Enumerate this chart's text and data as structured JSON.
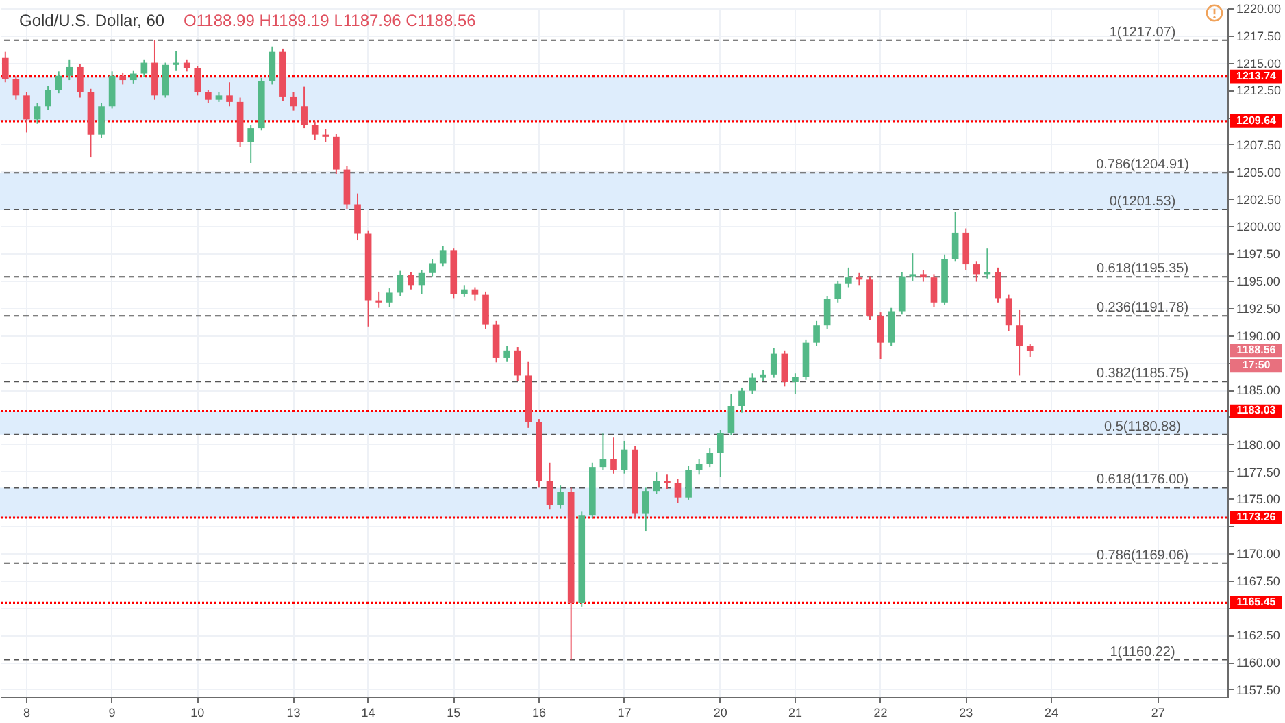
{
  "chart_data": {
    "type": "candlestick",
    "title": "Gold/U.S. Dollar, 60",
    "annotations": [
      "O1188.99 H1189.19 L1187.96 C1188.56",
      "1188.56",
      "17:50"
    ],
    "categories": [
      null,
      null,
      "8",
      null,
      null,
      null,
      null,
      null,
      null,
      null,
      "9",
      null,
      null,
      null,
      null,
      null,
      null,
      null,
      "10",
      null,
      null,
      null,
      null,
      null,
      null,
      null,
      null,
      "13",
      null,
      null,
      null,
      null,
      null,
      null,
      "14",
      null,
      null,
      null,
      null,
      null,
      null,
      null,
      "15",
      null,
      null,
      null,
      null,
      null,
      null,
      null,
      "16",
      null,
      null,
      null,
      null,
      null,
      null,
      null,
      "17",
      null,
      null,
      null,
      null,
      null,
      null,
      null,
      null,
      "20",
      null,
      null,
      null,
      null,
      null,
      null,
      "21",
      null,
      null,
      null,
      null,
      null,
      null,
      null,
      "22",
      null,
      null,
      null,
      null,
      null,
      null,
      null,
      "23",
      null,
      null,
      null,
      null,
      null,
      null,
      null,
      "24",
      null,
      null,
      null,
      null,
      null,
      null,
      null,
      null,
      null,
      "27",
      null,
      null,
      null,
      null,
      null,
      null
    ],
    "ohlc": [
      [
        1215.5,
        1216.0,
        1213.2,
        1213.5
      ],
      [
        1213.5,
        1213.8,
        1211.6,
        1212.0
      ],
      [
        1212.0,
        1212.3,
        1208.6,
        1209.8
      ],
      [
        1209.8,
        1211.3,
        1209.4,
        1211.0
      ],
      [
        1211.0,
        1212.9,
        1210.7,
        1212.5
      ],
      [
        1212.5,
        1214.2,
        1212.2,
        1213.8
      ],
      [
        1213.8,
        1215.3,
        1213.4,
        1214.6
      ],
      [
        1214.6,
        1214.9,
        1211.8,
        1212.3
      ],
      [
        1212.3,
        1212.6,
        1206.3,
        1208.4
      ],
      [
        1208.4,
        1211.3,
        1208.1,
        1211.0
      ],
      [
        1211.0,
        1214.2,
        1210.8,
        1213.8
      ],
      [
        1213.8,
        1214.1,
        1213.0,
        1213.4
      ],
      [
        1213.4,
        1214.3,
        1213.1,
        1214.0
      ],
      [
        1214.0,
        1215.3,
        1213.7,
        1215.0
      ],
      [
        1215.0,
        1217.07,
        1211.6,
        1212.0
      ],
      [
        1212.0,
        1215.0,
        1211.8,
        1214.8
      ],
      [
        1214.8,
        1216.1,
        1214.3,
        1215.0
      ],
      [
        1215.0,
        1215.3,
        1214.2,
        1214.5
      ],
      [
        1214.5,
        1214.7,
        1212.0,
        1212.3
      ],
      [
        1212.3,
        1212.5,
        1211.3,
        1211.6
      ],
      [
        1211.6,
        1212.3,
        1211.4,
        1212.0
      ],
      [
        1212.0,
        1213.2,
        1211.0,
        1211.4
      ],
      [
        1211.4,
        1211.8,
        1207.3,
        1207.7
      ],
      [
        1207.7,
        1209.3,
        1205.8,
        1209.0
      ],
      [
        1209.0,
        1213.6,
        1208.8,
        1213.3
      ],
      [
        1213.3,
        1216.5,
        1213.0,
        1216.0
      ],
      [
        1216.0,
        1216.3,
        1211.5,
        1211.9
      ],
      [
        1211.9,
        1212.3,
        1210.6,
        1211.0
      ],
      [
        1211.0,
        1212.8,
        1209.0,
        1209.3
      ],
      [
        1209.3,
        1209.6,
        1207.9,
        1208.4
      ],
      [
        1208.4,
        1208.9,
        1207.7,
        1208.2
      ],
      [
        1208.2,
        1208.5,
        1204.8,
        1205.2
      ],
      [
        1205.2,
        1205.5,
        1201.6,
        1202.0
      ],
      [
        1202.0,
        1203.0,
        1198.7,
        1199.3
      ],
      [
        1199.3,
        1199.6,
        1190.8,
        1193.2
      ],
      [
        1193.2,
        1194.0,
        1192.5,
        1193.0
      ],
      [
        1193.0,
        1194.3,
        1192.6,
        1193.9
      ],
      [
        1193.9,
        1195.9,
        1193.6,
        1195.5
      ],
      [
        1195.5,
        1195.8,
        1194.2,
        1194.6
      ],
      [
        1194.6,
        1196.0,
        1193.8,
        1195.7
      ],
      [
        1195.7,
        1197.0,
        1195.4,
        1196.6
      ],
      [
        1196.6,
        1198.2,
        1196.3,
        1197.8
      ],
      [
        1197.8,
        1198.0,
        1193.4,
        1193.8
      ],
      [
        1193.8,
        1194.6,
        1193.5,
        1194.2
      ],
      [
        1194.2,
        1194.4,
        1193.2,
        1193.7
      ],
      [
        1193.7,
        1194.0,
        1190.6,
        1191.0
      ],
      [
        1191.0,
        1191.3,
        1187.5,
        1187.9
      ],
      [
        1187.9,
        1189.0,
        1187.6,
        1188.6
      ],
      [
        1188.6,
        1188.9,
        1185.8,
        1186.3
      ],
      [
        1186.3,
        1187.6,
        1181.5,
        1182.0
      ],
      [
        1182.0,
        1182.3,
        1176.0,
        1176.6
      ],
      [
        1176.6,
        1178.3,
        1174.0,
        1174.4
      ],
      [
        1174.4,
        1176.2,
        1174.1,
        1175.6
      ],
      [
        1175.6,
        1176.0,
        1160.22,
        1165.4
      ],
      [
        1165.4,
        1173.8,
        1165.1,
        1173.5
      ],
      [
        1173.5,
        1178.3,
        1173.2,
        1177.9
      ],
      [
        1177.9,
        1181.0,
        1177.6,
        1178.6
      ],
      [
        1178.6,
        1180.6,
        1177.3,
        1177.6
      ],
      [
        1177.6,
        1180.3,
        1177.3,
        1179.5
      ],
      [
        1179.5,
        1179.8,
        1173.2,
        1173.6
      ],
      [
        1173.6,
        1176.0,
        1172.0,
        1175.7
      ],
      [
        1175.7,
        1177.4,
        1175.4,
        1176.6
      ],
      [
        1176.6,
        1177.2,
        1175.9,
        1176.4
      ],
      [
        1176.4,
        1176.8,
        1174.6,
        1175.1
      ],
      [
        1175.1,
        1178.0,
        1174.9,
        1177.6
      ],
      [
        1177.6,
        1178.6,
        1177.2,
        1178.2
      ],
      [
        1178.2,
        1179.6,
        1177.9,
        1179.2
      ],
      [
        1179.2,
        1181.3,
        1177.0,
        1181.0
      ],
      [
        1181.0,
        1184.6,
        1180.8,
        1183.5
      ],
      [
        1183.5,
        1185.2,
        1182.9,
        1184.9
      ],
      [
        1184.9,
        1186.5,
        1184.6,
        1186.1
      ],
      [
        1186.1,
        1186.8,
        1185.8,
        1186.4
      ],
      [
        1186.4,
        1188.8,
        1186.1,
        1188.3
      ],
      [
        1188.3,
        1188.6,
        1185.3,
        1185.7
      ],
      [
        1185.7,
        1186.5,
        1184.6,
        1186.2
      ],
      [
        1186.2,
        1189.6,
        1185.9,
        1189.3
      ],
      [
        1189.3,
        1191.3,
        1189.0,
        1190.9
      ],
      [
        1190.9,
        1193.6,
        1190.6,
        1193.3
      ],
      [
        1193.3,
        1195.0,
        1193.0,
        1194.7
      ],
      [
        1194.7,
        1196.2,
        1194.4,
        1195.3
      ],
      [
        1195.3,
        1195.7,
        1194.6,
        1195.1
      ],
      [
        1195.1,
        1195.4,
        1191.4,
        1191.8
      ],
      [
        1191.8,
        1192.1,
        1187.8,
        1189.3
      ],
      [
        1189.3,
        1192.5,
        1189.0,
        1192.2
      ],
      [
        1192.2,
        1195.8,
        1191.9,
        1195.4
      ],
      [
        1195.4,
        1197.5,
        1195.0,
        1195.6
      ],
      [
        1195.6,
        1196.0,
        1194.9,
        1195.3
      ],
      [
        1195.3,
        1195.6,
        1192.6,
        1193.0
      ],
      [
        1193.0,
        1197.4,
        1192.8,
        1197.0
      ],
      [
        1197.0,
        1201.3,
        1196.8,
        1199.4
      ],
      [
        1199.4,
        1199.8,
        1196.0,
        1196.5
      ],
      [
        1196.5,
        1196.8,
        1194.9,
        1195.6
      ],
      [
        1195.6,
        1198.0,
        1195.2,
        1195.8
      ],
      [
        1195.8,
        1196.2,
        1193.0,
        1193.4
      ],
      [
        1193.4,
        1193.7,
        1190.4,
        1190.9
      ],
      [
        1190.9,
        1192.3,
        1186.3,
        1188.99
      ],
      [
        1188.99,
        1189.19,
        1187.96,
        1188.56
      ],
      null,
      null,
      null,
      null,
      null,
      null,
      null,
      null,
      null,
      null,
      null,
      null,
      null,
      null,
      null,
      null,
      null,
      null
    ],
    "ylim": [
      1156.8,
      1220.0
    ],
    "yticks": [
      {
        "value": 1157.5,
        "label": "1157.50"
      },
      {
        "value": 1160,
        "label": "1160.00"
      },
      {
        "value": 1162.5,
        "label": "1162.50"
      },
      {
        "value": 1165,
        "label": null
      },
      {
        "value": 1167.5,
        "label": "1167.50"
      },
      {
        "value": 1170,
        "label": "1170.00"
      },
      {
        "value": 1172.5,
        "label": null
      },
      {
        "value": 1175,
        "label": "1175.00"
      },
      {
        "value": 1177.5,
        "label": "1177.50"
      },
      {
        "value": 1180,
        "label": "1180.00"
      },
      {
        "value": 1182.5,
        "label": null
      },
      {
        "value": 1185,
        "label": "1185.00"
      },
      {
        "value": 1187.5,
        "label": null
      },
      {
        "value": 1190,
        "label": "1190.00"
      },
      {
        "value": 1192.5,
        "label": "1192.50"
      },
      {
        "value": 1195,
        "label": "1195.00"
      },
      {
        "value": 1197.5,
        "label": "1197.50"
      },
      {
        "value": 1200,
        "label": "1200.00"
      },
      {
        "value": 1202.5,
        "label": "1202.50"
      },
      {
        "value": 1205,
        "label": "1205.00"
      },
      {
        "value": 1207.5,
        "label": "1207.50"
      },
      {
        "value": 1210,
        "label": null
      },
      {
        "value": 1212.5,
        "label": "1212.50"
      },
      {
        "value": 1215,
        "label": "1215.00"
      },
      {
        "value": 1217.5,
        "label": "1217.50"
      },
      {
        "value": 1220,
        "label": "1220.00"
      }
    ],
    "bands": [
      {
        "axis": "y",
        "from": 1209.64,
        "to": 1213.74,
        "color": "#deedfc"
      },
      {
        "axis": "y",
        "from": 1201.53,
        "to": 1204.91,
        "color": "#deedfc"
      },
      {
        "axis": "y",
        "from": 1180.88,
        "to": 1183.03,
        "color": "#deedfc"
      },
      {
        "axis": "y",
        "from": 1173.26,
        "to": 1176.0,
        "color": "#deedfc"
      }
    ],
    "ref_lines": [
      {
        "axis": "y",
        "value": 1217.07,
        "label": "1(1217.07)",
        "color": "#555555",
        "line_style": "dashed"
      },
      {
        "axis": "y",
        "value": 1204.91,
        "label": "0.786(1204.91)",
        "color": "#555555",
        "line_style": "dashed"
      },
      {
        "axis": "y",
        "value": 1195.35,
        "label": "0.618(1195.35)",
        "color": "#555555",
        "line_style": "dashed"
      },
      {
        "axis": "y",
        "value": 1201.53,
        "label": "0(1201.53)",
        "color": "#555555",
        "line_style": "dashed"
      },
      {
        "axis": "y",
        "value": 1191.78,
        "label": "0.236(1191.78)",
        "color": "#555555",
        "line_style": "dashed"
      },
      {
        "axis": "y",
        "value": 1185.75,
        "label": "0.382(1185.75)",
        "color": "#555555",
        "line_style": "dashed"
      },
      {
        "axis": "y",
        "value": 1180.88,
        "label": "0.5(1180.88)",
        "color": "#555555",
        "line_style": "dashed"
      },
      {
        "axis": "y",
        "value": 1176.0,
        "label": "0.618(1176.00)",
        "color": "#555555",
        "line_style": "dashed"
      },
      {
        "axis": "y",
        "value": 1169.06,
        "label": "0.786(1169.06)",
        "color": "#555555",
        "line_style": "dashed"
      },
      {
        "axis": "y",
        "value": 1160.22,
        "label": "1(1160.22)",
        "color": "#555555",
        "line_style": "dashed"
      },
      {
        "axis": "y",
        "value": 1213.74,
        "label": "1213.74",
        "color": "#ff0000",
        "line_style": "dotted"
      },
      {
        "axis": "y",
        "value": 1209.64,
        "label": "1209.64",
        "color": "#ff0000",
        "line_style": "dotted"
      },
      {
        "axis": "y",
        "value": 1183.03,
        "label": "1183.03",
        "color": "#ff0000",
        "line_style": "dotted"
      },
      {
        "axis": "y",
        "value": 1173.26,
        "label": "1173.26",
        "color": "#ff0000",
        "line_style": "dotted"
      },
      {
        "axis": "y",
        "value": 1165.45,
        "label": "1165.45",
        "color": "#ff0000",
        "line_style": "dotted"
      }
    ],
    "grid": true
  }
}
